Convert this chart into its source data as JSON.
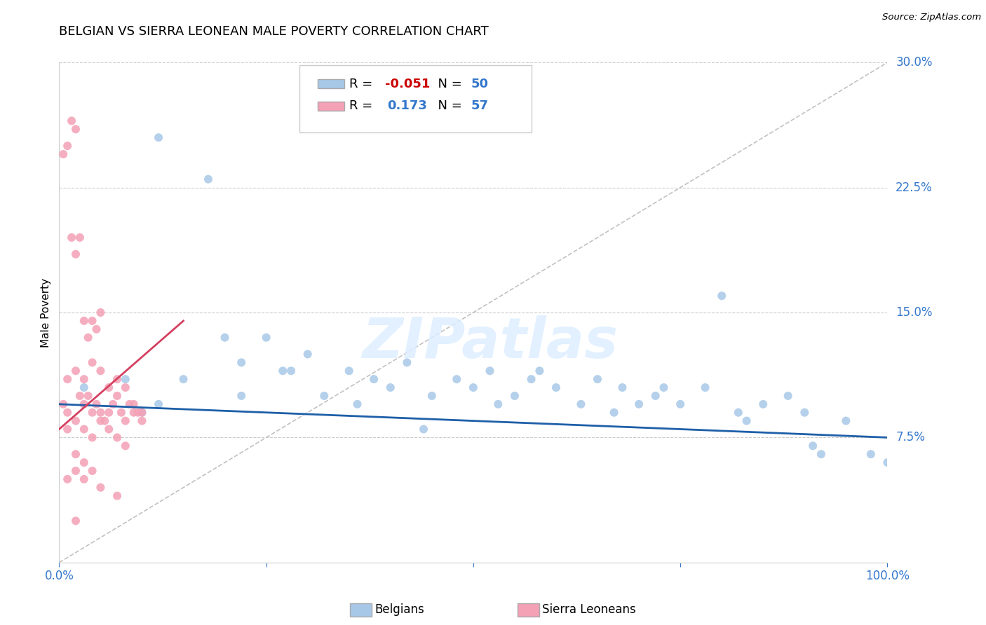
{
  "title": "BELGIAN VS SIERRA LEONEAN MALE POVERTY CORRELATION CHART",
  "source": "Source: ZipAtlas.com",
  "ylabel": "Male Poverty",
  "xlim": [
    0.0,
    100.0
  ],
  "ylim": [
    0.0,
    30.0
  ],
  "yticks": [
    0.0,
    7.5,
    15.0,
    22.5,
    30.0
  ],
  "ytick_labels": [
    "",
    "7.5%",
    "15.0%",
    "22.5%",
    "30.0%"
  ],
  "xticks": [
    0.0,
    25.0,
    50.0,
    75.0,
    100.0
  ],
  "xtick_labels": [
    "0.0%",
    "",
    "",
    "",
    "100.0%"
  ],
  "blue_color": "#A8C8E8",
  "pink_color": "#F4A0B5",
  "blue_line_color": "#1E5FA8",
  "pink_line_color": "#D44060",
  "diag_line_color": "#CCCCCC",
  "legend_R_blue": "-0.051",
  "legend_N_blue": "50",
  "legend_R_pink": "0.173",
  "legend_N_pink": "57",
  "legend_label_blue": "Belgians",
  "legend_label_pink": "Sierra Leoneans",
  "watermark_text": "ZIPatlas",
  "blue_scatter_x": [
    3,
    8,
    12,
    15,
    18,
    20,
    22,
    25,
    27,
    30,
    32,
    35,
    38,
    40,
    42,
    45,
    48,
    50,
    52,
    55,
    57,
    60,
    63,
    65,
    68,
    70,
    72,
    75,
    78,
    80,
    82,
    85,
    88,
    90,
    92,
    95,
    98,
    100,
    10,
    28,
    36,
    44,
    53,
    58,
    67,
    73,
    83,
    91,
    12,
    22
  ],
  "blue_scatter_y": [
    10.5,
    11.0,
    25.5,
    11.0,
    23.0,
    13.5,
    12.0,
    13.5,
    11.5,
    12.5,
    10.0,
    11.5,
    11.0,
    10.5,
    12.0,
    10.0,
    11.0,
    10.5,
    11.5,
    10.0,
    11.0,
    10.5,
    9.5,
    11.0,
    10.5,
    9.5,
    10.0,
    9.5,
    10.5,
    16.0,
    9.0,
    9.5,
    10.0,
    9.0,
    6.5,
    8.5,
    6.5,
    6.0,
    9.0,
    11.5,
    9.5,
    8.0,
    9.5,
    11.5,
    9.0,
    10.5,
    8.5,
    7.0,
    9.5,
    10.0
  ],
  "pink_scatter_x": [
    0.5,
    1,
    1.5,
    2,
    2.5,
    3,
    3.5,
    4,
    4.5,
    5,
    5.5,
    6,
    6.5,
    7,
    7.5,
    8,
    8.5,
    9,
    9.5,
    10,
    0.5,
    1,
    1.5,
    2,
    2.5,
    3,
    3.5,
    4,
    4.5,
    5,
    1,
    2,
    3,
    4,
    5,
    6,
    7,
    8,
    1,
    2,
    3,
    4,
    5,
    6,
    7,
    8,
    9,
    10,
    2,
    3,
    4,
    1,
    2,
    3,
    5,
    7,
    2
  ],
  "pink_scatter_y": [
    9.5,
    9.0,
    26.5,
    26.0,
    10.0,
    9.5,
    10.0,
    9.0,
    9.5,
    9.0,
    8.5,
    9.0,
    9.5,
    10.0,
    9.0,
    8.5,
    9.5,
    9.0,
    9.0,
    8.5,
    24.5,
    25.0,
    19.5,
    18.5,
    19.5,
    14.5,
    13.5,
    14.5,
    14.0,
    15.0,
    8.0,
    8.5,
    8.0,
    7.5,
    8.5,
    8.0,
    7.5,
    7.0,
    11.0,
    11.5,
    11.0,
    12.0,
    11.5,
    10.5,
    11.0,
    10.5,
    9.5,
    9.0,
    6.5,
    6.0,
    5.5,
    5.0,
    5.5,
    5.0,
    4.5,
    4.0,
    2.5
  ]
}
